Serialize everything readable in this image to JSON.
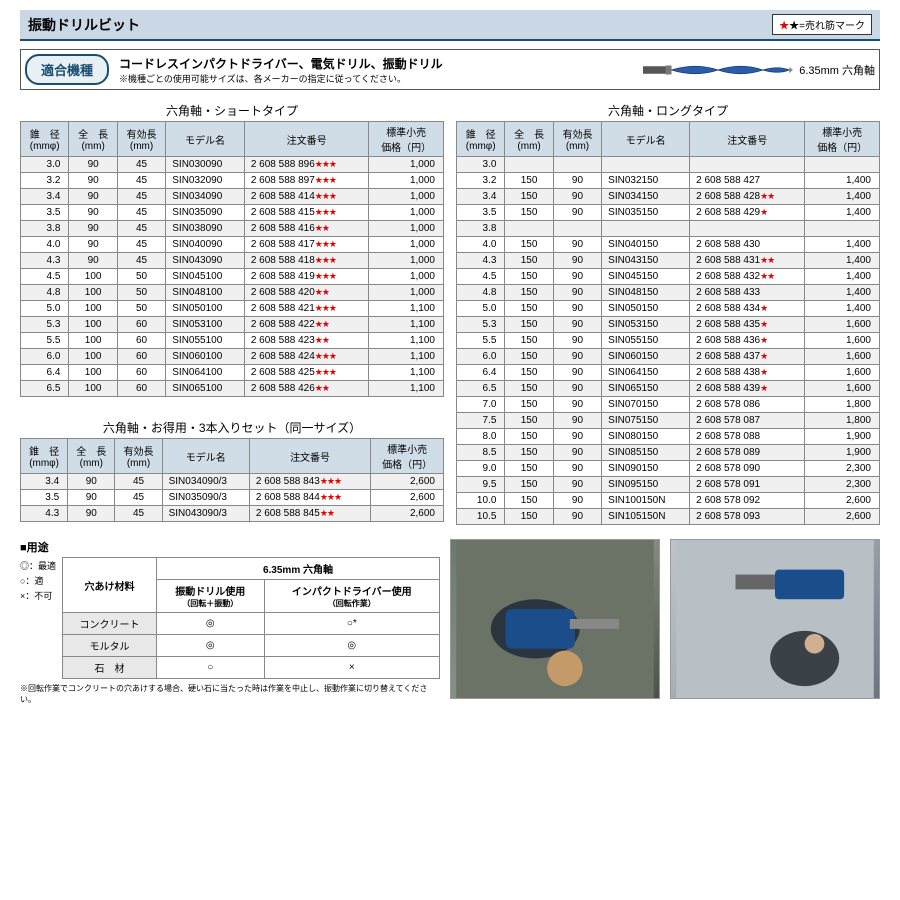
{
  "header": {
    "title": "振動ドリルビット",
    "legend": "★=売れ筋マーク"
  },
  "compat": {
    "badge": "適合機種",
    "text": "コードレスインパクトドライバー、電気ドリル、振動ドリル",
    "note": "※機種ごとの使用可能サイズは、各メーカーの指定に従ってください。",
    "drill_label": "6.35mm 六角軸"
  },
  "cols": {
    "dia": "錐　径",
    "dia_unit": "(mmφ)",
    "len": "全　長",
    "len_unit": "(mm)",
    "eff": "有効長",
    "eff_unit": "(mm)",
    "model": "モデル名",
    "order": "注文番号",
    "price": "標準小売",
    "price_unit": "価格（円）"
  },
  "table_short": {
    "title": "六角軸・ショートタイプ",
    "rows": [
      {
        "dia": "3.0",
        "len": "90",
        "eff": "45",
        "model": "SIN030090",
        "order": "2 608 588 896",
        "stars": 3,
        "price": "1,000"
      },
      {
        "dia": "3.2",
        "len": "90",
        "eff": "45",
        "model": "SIN032090",
        "order": "2 608 588 897",
        "stars": 3,
        "price": "1,000"
      },
      {
        "dia": "3.4",
        "len": "90",
        "eff": "45",
        "model": "SIN034090",
        "order": "2 608 588 414",
        "stars": 3,
        "price": "1,000"
      },
      {
        "dia": "3.5",
        "len": "90",
        "eff": "45",
        "model": "SIN035090",
        "order": "2 608 588 415",
        "stars": 3,
        "price": "1,000"
      },
      {
        "dia": "3.8",
        "len": "90",
        "eff": "45",
        "model": "SIN038090",
        "order": "2 608 588 416",
        "stars": 2,
        "price": "1,000"
      },
      {
        "dia": "4.0",
        "len": "90",
        "eff": "45",
        "model": "SIN040090",
        "order": "2 608 588 417",
        "stars": 3,
        "price": "1,000"
      },
      {
        "dia": "4.3",
        "len": "90",
        "eff": "45",
        "model": "SIN043090",
        "order": "2 608 588 418",
        "stars": 3,
        "price": "1,000"
      },
      {
        "dia": "4.5",
        "len": "100",
        "eff": "50",
        "model": "SIN045100",
        "order": "2 608 588 419",
        "stars": 3,
        "price": "1,000"
      },
      {
        "dia": "4.8",
        "len": "100",
        "eff": "50",
        "model": "SIN048100",
        "order": "2 608 588 420",
        "stars": 2,
        "price": "1,000"
      },
      {
        "dia": "5.0",
        "len": "100",
        "eff": "50",
        "model": "SIN050100",
        "order": "2 608 588 421",
        "stars": 3,
        "price": "1,100"
      },
      {
        "dia": "5.3",
        "len": "100",
        "eff": "60",
        "model": "SIN053100",
        "order": "2 608 588 422",
        "stars": 2,
        "price": "1,100"
      },
      {
        "dia": "5.5",
        "len": "100",
        "eff": "60",
        "model": "SIN055100",
        "order": "2 608 588 423",
        "stars": 2,
        "price": "1,100"
      },
      {
        "dia": "6.0",
        "len": "100",
        "eff": "60",
        "model": "SIN060100",
        "order": "2 608 588 424",
        "stars": 3,
        "price": "1,100"
      },
      {
        "dia": "6.4",
        "len": "100",
        "eff": "60",
        "model": "SIN064100",
        "order": "2 608 588 425",
        "stars": 3,
        "price": "1,100"
      },
      {
        "dia": "6.5",
        "len": "100",
        "eff": "60",
        "model": "SIN065100",
        "order": "2 608 588 426",
        "stars": 2,
        "price": "1,100"
      }
    ]
  },
  "table_set": {
    "title": "六角軸・お得用・3本入りセット（同一サイズ）",
    "rows": [
      {
        "dia": "3.4",
        "len": "90",
        "eff": "45",
        "model": "SIN034090/3",
        "order": "2 608 588 843",
        "stars": 3,
        "price": "2,600"
      },
      {
        "dia": "3.5",
        "len": "90",
        "eff": "45",
        "model": "SIN035090/3",
        "order": "2 608 588 844",
        "stars": 3,
        "price": "2,600"
      },
      {
        "dia": "4.3",
        "len": "90",
        "eff": "45",
        "model": "SIN043090/3",
        "order": "2 608 588 845",
        "stars": 2,
        "price": "2,600"
      }
    ]
  },
  "table_long": {
    "title": "六角軸・ロングタイプ",
    "rows": [
      {
        "dia": "3.0",
        "len": "",
        "eff": "",
        "model": "",
        "order": "",
        "stars": 0,
        "price": ""
      },
      {
        "dia": "3.2",
        "len": "150",
        "eff": "90",
        "model": "SIN032150",
        "order": "2 608 588 427",
        "stars": 0,
        "price": "1,400"
      },
      {
        "dia": "3.4",
        "len": "150",
        "eff": "90",
        "model": "SIN034150",
        "order": "2 608 588 428",
        "stars": 2,
        "price": "1,400"
      },
      {
        "dia": "3.5",
        "len": "150",
        "eff": "90",
        "model": "SIN035150",
        "order": "2 608 588 429",
        "stars": 1,
        "price": "1,400"
      },
      {
        "dia": "3.8",
        "len": "",
        "eff": "",
        "model": "",
        "order": "",
        "stars": 0,
        "price": ""
      },
      {
        "dia": "4.0",
        "len": "150",
        "eff": "90",
        "model": "SIN040150",
        "order": "2 608 588 430",
        "stars": 0,
        "price": "1,400"
      },
      {
        "dia": "4.3",
        "len": "150",
        "eff": "90",
        "model": "SIN043150",
        "order": "2 608 588 431",
        "stars": 2,
        "price": "1,400"
      },
      {
        "dia": "4.5",
        "len": "150",
        "eff": "90",
        "model": "SIN045150",
        "order": "2 608 588 432",
        "stars": 2,
        "price": "1,400"
      },
      {
        "dia": "4.8",
        "len": "150",
        "eff": "90",
        "model": "SIN048150",
        "order": "2 608 588 433",
        "stars": 0,
        "price": "1,400"
      },
      {
        "dia": "5.0",
        "len": "150",
        "eff": "90",
        "model": "SIN050150",
        "order": "2 608 588 434",
        "stars": 1,
        "price": "1,400"
      },
      {
        "dia": "5.3",
        "len": "150",
        "eff": "90",
        "model": "SIN053150",
        "order": "2 608 588 435",
        "stars": 1,
        "price": "1,600"
      },
      {
        "dia": "5.5",
        "len": "150",
        "eff": "90",
        "model": "SIN055150",
        "order": "2 608 588 436",
        "stars": 1,
        "price": "1,600"
      },
      {
        "dia": "6.0",
        "len": "150",
        "eff": "90",
        "model": "SIN060150",
        "order": "2 608 588 437",
        "stars": 1,
        "price": "1,600"
      },
      {
        "dia": "6.4",
        "len": "150",
        "eff": "90",
        "model": "SIN064150",
        "order": "2 608 588 438",
        "stars": 1,
        "price": "1,600"
      },
      {
        "dia": "6.5",
        "len": "150",
        "eff": "90",
        "model": "SIN065150",
        "order": "2 608 588 439",
        "stars": 1,
        "price": "1,600"
      },
      {
        "dia": "7.0",
        "len": "150",
        "eff": "90",
        "model": "SIN070150",
        "order": "2 608 578 086",
        "stars": 0,
        "price": "1,800"
      },
      {
        "dia": "7.5",
        "len": "150",
        "eff": "90",
        "model": "SIN075150",
        "order": "2 608 578 087",
        "stars": 0,
        "price": "1,800"
      },
      {
        "dia": "8.0",
        "len": "150",
        "eff": "90",
        "model": "SIN080150",
        "order": "2 608 578 088",
        "stars": 0,
        "price": "1,900"
      },
      {
        "dia": "8.5",
        "len": "150",
        "eff": "90",
        "model": "SIN085150",
        "order": "2 608 578 089",
        "stars": 0,
        "price": "1,900"
      },
      {
        "dia": "9.0",
        "len": "150",
        "eff": "90",
        "model": "SIN090150",
        "order": "2 608 578 090",
        "stars": 0,
        "price": "2,300"
      },
      {
        "dia": "9.5",
        "len": "150",
        "eff": "90",
        "model": "SIN095150",
        "order": "2 608 578 091",
        "stars": 0,
        "price": "2,300"
      },
      {
        "dia": "10.0",
        "len": "150",
        "eff": "90",
        "model": "SIN100150N",
        "order": "2 608 578 092",
        "stars": 0,
        "price": "2,600"
      },
      {
        "dia": "10.5",
        "len": "150",
        "eff": "90",
        "model": "SIN105150N",
        "order": "2 608 578 093",
        "stars": 0,
        "price": "2,600"
      }
    ]
  },
  "usage": {
    "title": "■用途",
    "axis_header": "6.35mm 六角軸",
    "material_header": "穴あけ材料",
    "col1": "振動ドリル使用",
    "col1_sub": "（回転＋振動）",
    "col2": "インパクトドライバー使用",
    "col2_sub": "（回転作業）",
    "rows": [
      {
        "mat": "コンクリート",
        "c1": "◎",
        "c2": "○*"
      },
      {
        "mat": "モルタル",
        "c1": "◎",
        "c2": "◎"
      },
      {
        "mat": "石　材",
        "c1": "○",
        "c2": "×"
      }
    ],
    "legend": [
      "◎：最適",
      "○：適",
      "×：不可"
    ],
    "note": "※回転作業でコンクリートの穴あけする場合、硬い石に当たった時は作業を中止し、振動作業に切り替えてください。"
  },
  "colors": {
    "header_bg": "#c9d8e4",
    "th_bg": "#d0dde6",
    "border": "#888",
    "accent": "#1a4d6e",
    "star": "#e60000"
  }
}
